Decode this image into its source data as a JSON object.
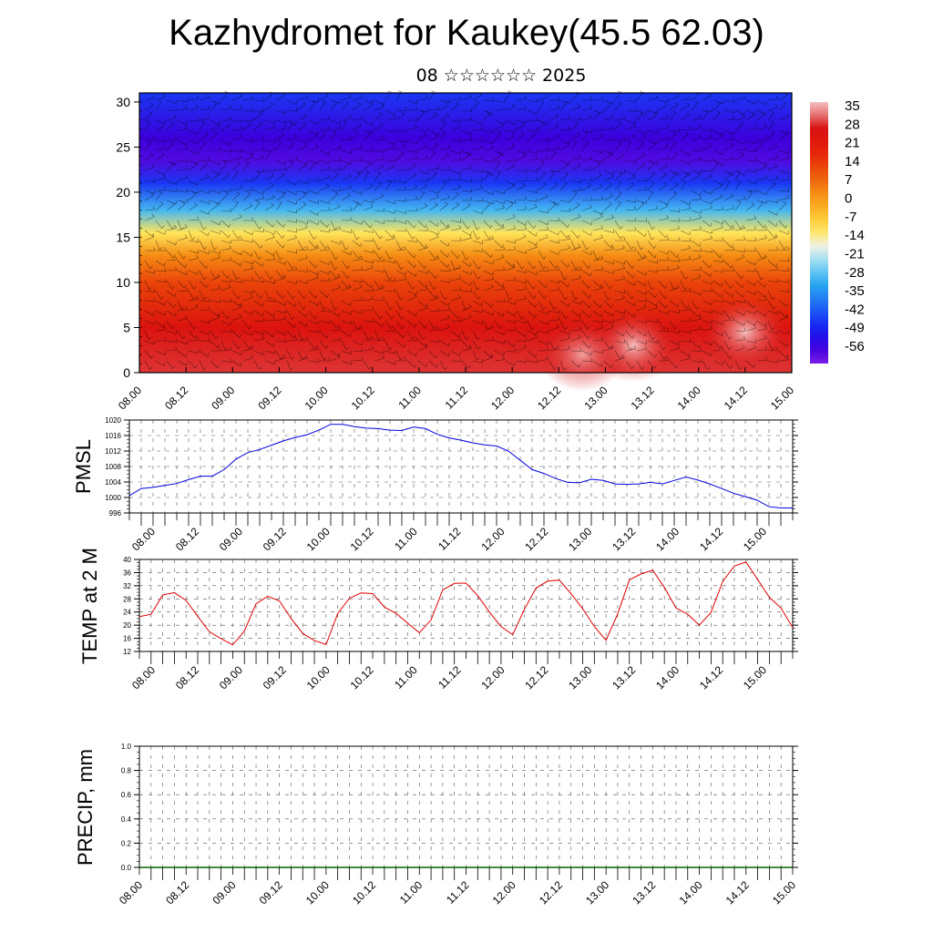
{
  "header": {
    "title": "Kazhydromet for Kaukey(45.5 62.03)",
    "subtitle": "08 ☆☆☆☆☆☆ 2025"
  },
  "colors": {
    "pmsl_line": "#0000e0",
    "temp_line": "#e00000",
    "precip_baseline": "#006400",
    "colorbar_top": "#f4b4b4",
    "colorbar_bottom": "#7a1ee8"
  },
  "chart_data": [
    {
      "type": "heatmap",
      "name": "vertical-section",
      "x_ticks": [
        "08.00",
        "08.12",
        "09.00",
        "09.12",
        "10.00",
        "10.12",
        "11.00",
        "11.12",
        "12.00",
        "12.12",
        "13.00",
        "13.12",
        "14.00",
        "14.12",
        "15.00"
      ],
      "y_ticks": [
        "0",
        "5",
        "10",
        "15",
        "20",
        "25",
        "30"
      ],
      "ylim": [
        0,
        31
      ],
      "colorbar_labels": [
        "35",
        "28",
        "21",
        "14",
        "7",
        "0",
        "-7",
        "-14",
        "-21",
        "-28",
        "-35",
        "-42",
        "-49",
        "-56"
      ],
      "colorbar_range": [
        -60,
        38
      ],
      "temperature_profile": [
        {
          "level": 0,
          "value": 30
        },
        {
          "level": 5,
          "value": 26
        },
        {
          "level": 10,
          "value": 14
        },
        {
          "level": 13,
          "value": 4
        },
        {
          "level": 15.5,
          "value": -10
        },
        {
          "level": 18,
          "value": -28
        },
        {
          "level": 21,
          "value": -44
        },
        {
          "level": 23.5,
          "value": -56
        },
        {
          "level": 26,
          "value": -54
        },
        {
          "level": 31,
          "value": -44
        }
      ],
      "warm_spots": [
        {
          "x": 13.3,
          "level": 3,
          "value": 38
        },
        {
          "x": 14.5,
          "level": 4.5,
          "value": 40
        },
        {
          "x": 12.75,
          "level": 2,
          "value": 36
        }
      ]
    },
    {
      "type": "line",
      "name": "pmsl",
      "ylabel": "PMSL",
      "ylim": [
        996,
        1020
      ],
      "y_ticks": [
        "996",
        "1000",
        "1004",
        "1008",
        "1012",
        "1016",
        "1020"
      ],
      "x_ticks": [
        "08.00",
        "08.12",
        "09.00",
        "09.12",
        "10.00",
        "10.12",
        "11.00",
        "11.12",
        "12.00",
        "12.12",
        "13.00",
        "13.12",
        "14.00",
        "14.12",
        "15.00"
      ],
      "x": [
        0,
        0.125,
        0.25,
        0.375,
        0.5,
        0.625,
        0.75,
        0.875,
        1,
        1.125,
        1.25,
        1.375,
        1.5,
        1.625,
        1.75,
        1.875,
        2,
        2.125,
        2.25,
        2.375,
        2.5,
        2.625,
        2.75,
        2.875,
        3,
        3.125,
        3.25,
        3.375,
        3.5,
        3.625,
        3.75,
        3.875,
        4,
        4.125,
        4.25,
        4.375,
        4.5,
        4.625,
        4.75,
        4.875,
        5,
        5.125,
        5.25,
        5.375,
        5.5,
        5.625,
        5.75,
        5.875,
        6,
        6.125,
        6.25,
        6.375,
        6.5,
        6.625,
        6.75,
        6.875,
        7
      ],
      "values": [
        1000.5,
        1002.3,
        1002.6,
        1003.1,
        1003.6,
        1004.6,
        1005.5,
        1005.5,
        1007.2,
        1009.9,
        1011.6,
        1012.4,
        1013.5,
        1014.6,
        1015.5,
        1016.2,
        1017.4,
        1018.9,
        1018.9,
        1018.3,
        1017.9,
        1017.8,
        1017.4,
        1017.3,
        1018.2,
        1017.8,
        1016.3,
        1015.4,
        1014.8,
        1014.1,
        1013.6,
        1013.3,
        1012.0,
        1009.6,
        1007.2,
        1006.2,
        1004.9,
        1003.9,
        1003.8,
        1004.7,
        1004.4,
        1003.5,
        1003.4,
        1003.5,
        1003.9,
        1003.5,
        1004.4,
        1005.3,
        1004.5,
        1003.5,
        1002.3,
        1001.1,
        1000.2,
        999.3,
        997.6,
        997.3,
        997.3
      ]
    },
    {
      "type": "line",
      "name": "temp-2m",
      "ylabel": "TEMP at 2 M",
      "ylim": [
        12,
        40
      ],
      "y_ticks": [
        "12",
        "16",
        "20",
        "24",
        "28",
        "32",
        "36",
        "40"
      ],
      "x_ticks": [
        "08.00",
        "08.12",
        "09.00",
        "09.12",
        "10.00",
        "10.12",
        "11.00",
        "11.12",
        "12.00",
        "12.12",
        "13.00",
        "13.12",
        "14.00",
        "14.12",
        "15.00"
      ],
      "x": [
        0,
        0.125,
        0.25,
        0.375,
        0.5,
        0.625,
        0.75,
        0.875,
        1,
        1.125,
        1.25,
        1.375,
        1.5,
        1.625,
        1.75,
        1.875,
        2,
        2.125,
        2.25,
        2.375,
        2.5,
        2.625,
        2.75,
        2.875,
        3,
        3.125,
        3.25,
        3.375,
        3.5,
        3.625,
        3.75,
        3.875,
        4,
        4.125,
        4.25,
        4.375,
        4.5,
        4.625,
        4.75,
        4.875,
        5,
        5.125,
        5.25,
        5.375,
        5.5,
        5.625,
        5.75,
        5.875,
        6,
        6.125,
        6.25,
        6.375,
        6.5,
        6.625,
        6.75,
        6.875,
        7
      ],
      "values": [
        22.6,
        23.3,
        29.2,
        29.9,
        27.5,
        22.7,
        18.0,
        15.9,
        14.0,
        18.2,
        26.5,
        28.8,
        27.4,
        22.1,
        17.5,
        15.3,
        14.1,
        23.6,
        28.2,
        29.8,
        29.6,
        25.5,
        23.6,
        20.6,
        17.7,
        21.6,
        30.7,
        32.7,
        32.8,
        29.0,
        24.0,
        19.6,
        17.1,
        24.8,
        31.3,
        33.4,
        33.7,
        29.6,
        25.0,
        19.6,
        15.4,
        23.4,
        33.8,
        35.6,
        36.7,
        31.5,
        25.2,
        23.3,
        20.0,
        23.9,
        33.3,
        38.0,
        39.2,
        33.9,
        28.5,
        25.2,
        19.3
      ]
    },
    {
      "type": "line",
      "name": "precip",
      "ylabel": "PRECIP, mm",
      "ylim": [
        0,
        1
      ],
      "y_ticks": [
        "0.0",
        "0.2",
        "0.4",
        "0.6",
        "0.8",
        "1.0"
      ],
      "x_ticks": [
        "08.00",
        "08.12",
        "09.00",
        "09.12",
        "10.00",
        "10.12",
        "11.00",
        "11.12",
        "12.00",
        "12.12",
        "13.00",
        "13.12",
        "14.00",
        "14.12",
        "15.00"
      ],
      "x": [
        0,
        7
      ],
      "values": [
        0,
        0
      ]
    }
  ]
}
